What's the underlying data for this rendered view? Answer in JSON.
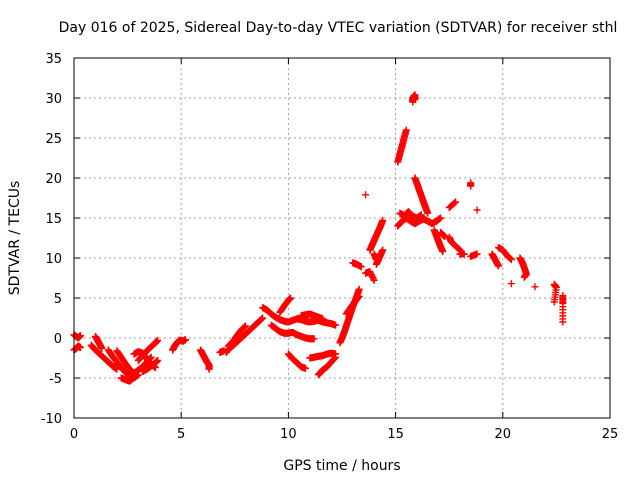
{
  "chart_data": {
    "type": "scatter",
    "title": "Day 016 of 2025, Sidereal Day-to-day VTEC variation (SDTVAR) for receiver sthl",
    "xlabel": "GPS time / hours",
    "ylabel": "SDTVAR / TECUs",
    "xlim": [
      0,
      25
    ],
    "ylim": [
      -10,
      35
    ],
    "xticks": [
      0,
      5,
      10,
      15,
      20,
      25
    ],
    "yticks": [
      -10,
      -5,
      0,
      5,
      10,
      15,
      20,
      25,
      30,
      35
    ],
    "grid": true,
    "marker": "+",
    "color": "#ff0000",
    "series": [
      {
        "name": "SDTVAR",
        "segments": [
          [
            [
              0.0,
              0.4
            ],
            [
              0.1,
              0.2
            ],
            [
              0.2,
              0.0
            ],
            [
              0.3,
              0.3
            ]
          ],
          [
            [
              0.0,
              -1.5
            ],
            [
              0.1,
              -1.3
            ],
            [
              0.2,
              -1.0
            ],
            [
              0.3,
              -1.2
            ]
          ],
          [
            [
              0.8,
              -0.9
            ],
            [
              1.0,
              -1.5
            ],
            [
              1.2,
              -2.0
            ],
            [
              1.4,
              -2.5
            ],
            [
              1.6,
              -3.0
            ],
            [
              1.8,
              -3.5
            ],
            [
              2.0,
              -3.9
            ]
          ],
          [
            [
              1.0,
              0.2
            ],
            [
              1.1,
              -0.3
            ],
            [
              1.2,
              -0.8
            ],
            [
              1.3,
              -1.3
            ]
          ],
          [
            [
              1.6,
              -1.5
            ],
            [
              1.8,
              -2.3
            ],
            [
              2.0,
              -3.0
            ],
            [
              2.2,
              -3.7
            ],
            [
              2.4,
              -4.3
            ],
            [
              2.6,
              -4.7
            ],
            [
              2.8,
              -5.0
            ],
            [
              3.0,
              -4.6
            ]
          ],
          [
            [
              2.0,
              -1.6
            ],
            [
              2.2,
              -2.4
            ],
            [
              2.4,
              -3.2
            ],
            [
              2.6,
              -3.9
            ],
            [
              2.8,
              -4.4
            ],
            [
              3.0,
              -4.0
            ],
            [
              3.2,
              -3.6
            ],
            [
              3.4,
              -3.0
            ],
            [
              3.6,
              -2.4
            ]
          ],
          [
            [
              2.2,
              -5.0
            ],
            [
              2.4,
              -5.2
            ],
            [
              2.6,
              -5.4
            ],
            [
              2.8,
              -4.9
            ]
          ],
          [
            [
              2.8,
              -2.0
            ],
            [
              3.0,
              -1.7
            ],
            [
              3.2,
              -1.9
            ],
            [
              3.4,
              -2.6
            ],
            [
              3.6,
              -3.3
            ],
            [
              3.8,
              -3.7
            ]
          ],
          [
            [
              3.0,
              -2.8
            ],
            [
              3.2,
              -2.2
            ],
            [
              3.4,
              -1.6
            ],
            [
              3.6,
              -1.1
            ],
            [
              3.8,
              -0.6
            ],
            [
              3.9,
              -0.3
            ]
          ],
          [
            [
              3.2,
              -4.2
            ],
            [
              3.4,
              -3.9
            ],
            [
              3.6,
              -3.5
            ],
            [
              3.8,
              -3.1
            ],
            [
              3.9,
              -2.8
            ]
          ],
          [
            [
              4.6,
              -1.5
            ],
            [
              4.7,
              -1.0
            ],
            [
              4.8,
              -0.6
            ],
            [
              4.9,
              -0.3
            ],
            [
              5.0,
              -0.3
            ],
            [
              5.1,
              -0.4
            ],
            [
              5.2,
              -0.2
            ]
          ],
          [
            [
              5.9,
              -1.5
            ],
            [
              6.0,
              -2.0
            ],
            [
              6.1,
              -2.5
            ],
            [
              6.2,
              -3.0
            ],
            [
              6.3,
              -3.4
            ],
            [
              6.3,
              -3.9
            ]
          ],
          [
            [
              6.8,
              -1.8
            ],
            [
              7.0,
              -1.6
            ]
          ],
          [
            [
              7.1,
              -1.8
            ],
            [
              7.2,
              -1.4
            ],
            [
              7.4,
              -1.0
            ],
            [
              7.6,
              -0.5
            ],
            [
              7.8,
              0.0
            ],
            [
              8.0,
              0.5
            ],
            [
              8.2,
              1.0
            ],
            [
              8.4,
              1.5
            ],
            [
              8.6,
              2.0
            ],
            [
              8.8,
              2.5
            ]
          ],
          [
            [
              7.2,
              -1.0
            ],
            [
              7.4,
              -0.5
            ],
            [
              7.6,
              0.3
            ],
            [
              7.8,
              1.0
            ],
            [
              8.0,
              1.5
            ]
          ],
          [
            [
              8.8,
              3.8
            ],
            [
              9.0,
              3.5
            ],
            [
              9.2,
              3.0
            ],
            [
              9.4,
              2.6
            ],
            [
              9.6,
              2.3
            ],
            [
              9.8,
              2.1
            ],
            [
              10.0,
              2.0
            ],
            [
              10.2,
              2.2
            ],
            [
              10.4,
              2.4
            ],
            [
              10.6,
              2.3
            ],
            [
              10.8,
              2.1
            ],
            [
              11.0,
              2.0
            ],
            [
              11.2,
              2.1
            ],
            [
              11.4,
              2.2
            ],
            [
              11.6,
              2.0
            ],
            [
              11.8,
              1.9
            ],
            [
              12.0,
              1.8
            ],
            [
              12.2,
              1.6
            ]
          ],
          [
            [
              9.2,
              1.6
            ],
            [
              9.4,
              1.2
            ],
            [
              9.6,
              0.8
            ],
            [
              9.8,
              0.6
            ],
            [
              10.0,
              0.6
            ],
            [
              10.2,
              0.7
            ],
            [
              10.4,
              0.4
            ],
            [
              10.6,
              0.2
            ],
            [
              10.8,
              0.0
            ],
            [
              11.0,
              -0.1
            ],
            [
              11.2,
              -0.1
            ]
          ],
          [
            [
              9.6,
              3.2
            ],
            [
              9.8,
              4.0
            ],
            [
              10.0,
              4.7
            ],
            [
              10.1,
              5.0
            ]
          ],
          [
            [
              10.0,
              -2.0
            ],
            [
              10.2,
              -2.6
            ],
            [
              10.4,
              -3.1
            ],
            [
              10.6,
              -3.6
            ],
            [
              10.8,
              -3.8
            ]
          ],
          [
            [
              10.6,
              2.8
            ],
            [
              10.8,
              2.9
            ],
            [
              11.0,
              3.0
            ],
            [
              11.2,
              2.8
            ],
            [
              11.4,
              2.6
            ],
            [
              11.6,
              2.4
            ]
          ],
          [
            [
              11.0,
              -2.5
            ],
            [
              11.2,
              -2.4
            ],
            [
              11.4,
              -2.3
            ],
            [
              11.6,
              -2.2
            ],
            [
              11.8,
              -2.0
            ],
            [
              12.0,
              -1.9
            ],
            [
              12.2,
              -2.0
            ]
          ],
          [
            [
              11.4,
              -4.6
            ],
            [
              11.5,
              -4.3
            ],
            [
              11.6,
              -4.0
            ],
            [
              11.8,
              -3.6
            ],
            [
              12.0,
              -3.0
            ],
            [
              12.2,
              -2.4
            ]
          ],
          [
            [
              12.4,
              -0.6
            ],
            [
              12.5,
              0.0
            ],
            [
              12.6,
              0.7
            ],
            [
              12.7,
              1.5
            ],
            [
              12.8,
              2.3
            ],
            [
              12.9,
              3.1
            ],
            [
              13.0,
              3.9
            ],
            [
              13.1,
              4.6
            ],
            [
              13.2,
              5.3
            ],
            [
              13.3,
              6.1
            ]
          ],
          [
            [
              12.7,
              3.0
            ],
            [
              12.9,
              3.8
            ],
            [
              13.1,
              4.5
            ],
            [
              13.3,
              5.2
            ]
          ],
          [
            [
              13.0,
              9.4
            ],
            [
              13.2,
              9.2
            ],
            [
              13.4,
              8.9
            ]
          ],
          [
            [
              13.6,
              17.9
            ]
          ],
          [
            [
              13.6,
              8.1
            ],
            [
              13.8,
              8.3
            ],
            [
              14.0,
              7.2
            ]
          ],
          [
            [
              13.8,
              11.0
            ],
            [
              13.9,
              11.6
            ],
            [
              14.0,
              12.2
            ],
            [
              14.1,
              12.8
            ],
            [
              14.2,
              13.4
            ],
            [
              14.3,
              14.0
            ],
            [
              14.4,
              14.7
            ]
          ],
          [
            [
              14.1,
              9.2
            ],
            [
              14.2,
              9.8
            ],
            [
              14.3,
              10.4
            ],
            [
              14.4,
              11.0
            ]
          ],
          [
            [
              14.0,
              10.5
            ],
            [
              14.1,
              9.8
            ]
          ],
          [
            [
              15.1,
              22.0
            ],
            [
              15.2,
              23.0
            ],
            [
              15.3,
              24.0
            ],
            [
              15.4,
              25.0
            ],
            [
              15.5,
              26.0
            ]
          ],
          [
            [
              15.8,
              29.5
            ],
            [
              15.8,
              30.0
            ],
            [
              15.9,
              30.4
            ],
            [
              15.9,
              29.8
            ]
          ],
          [
            [
              15.1,
              14.0
            ],
            [
              15.3,
              14.6
            ],
            [
              15.5,
              15.0
            ],
            [
              15.7,
              14.6
            ],
            [
              15.9,
              14.3
            ],
            [
              16.1,
              14.6
            ],
            [
              16.3,
              14.9
            ],
            [
              16.5,
              14.6
            ],
            [
              16.7,
              14.3
            ],
            [
              16.9,
              14.6
            ],
            [
              17.1,
              15.0
            ]
          ],
          [
            [
              15.2,
              15.6
            ],
            [
              15.4,
              15.3
            ],
            [
              15.6,
              15.8
            ],
            [
              15.8,
              15.2
            ],
            [
              16.0,
              15.0
            ],
            [
              16.2,
              15.4
            ]
          ],
          [
            [
              15.9,
              20.0
            ],
            [
              16.0,
              19.3
            ],
            [
              16.1,
              18.5
            ],
            [
              16.2,
              17.8
            ],
            [
              16.3,
              17.0
            ],
            [
              16.4,
              16.3
            ],
            [
              16.5,
              15.6
            ]
          ],
          [
            [
              16.8,
              13.5
            ],
            [
              16.9,
              12.8
            ],
            [
              17.0,
              12.1
            ],
            [
              17.1,
              11.4
            ],
            [
              17.2,
              10.8
            ]
          ],
          [
            [
              17.1,
              13.2
            ],
            [
              17.2,
              12.9
            ],
            [
              17.3,
              12.7
            ]
          ],
          [
            [
              17.5,
              12.6
            ],
            [
              17.6,
              12.0
            ],
            [
              17.8,
              11.5
            ],
            [
              18.0,
              11.0
            ]
          ],
          [
            [
              17.5,
              16.3
            ],
            [
              17.8,
              17.0
            ]
          ],
          [
            [
              18.0,
              10.5
            ],
            [
              18.2,
              10.5
            ]
          ],
          [
            [
              18.5,
              19.4
            ],
            [
              18.5,
              19.0
            ]
          ],
          [
            [
              18.5,
              10.2
            ],
            [
              18.8,
              10.5
            ]
          ],
          [
            [
              18.8,
              16.0
            ]
          ],
          [
            [
              19.5,
              10.5
            ],
            [
              19.6,
              10.0
            ],
            [
              19.7,
              9.5
            ],
            [
              19.8,
              9.0
            ]
          ],
          [
            [
              19.8,
              11.3
            ],
            [
              20.0,
              11.0
            ],
            [
              20.2,
              10.3
            ],
            [
              20.4,
              9.8
            ]
          ],
          [
            [
              20.4,
              6.8
            ]
          ],
          [
            [
              20.8,
              10.0
            ],
            [
              20.9,
              9.5
            ],
            [
              21.0,
              8.8
            ],
            [
              21.1,
              8.0
            ],
            [
              21.0,
              7.6
            ]
          ],
          [
            [
              21.5,
              6.4
            ]
          ],
          [
            [
              22.4,
              6.7
            ],
            [
              22.5,
              6.3
            ],
            [
              22.4,
              4.5
            ]
          ],
          [
            [
              22.8,
              5.3
            ],
            [
              22.8,
              4.3
            ],
            [
              22.8,
              2.0
            ]
          ]
        ]
      }
    ]
  }
}
